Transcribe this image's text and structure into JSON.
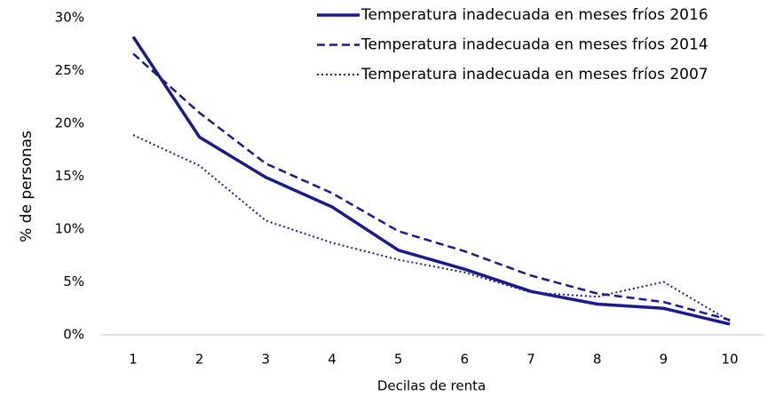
{
  "chart_data": {
    "type": "line",
    "xlabel": "Decilas de renta",
    "ylabel": "% de personas",
    "categories": [
      "1",
      "2",
      "3",
      "4",
      "5",
      "6",
      "7",
      "8",
      "9",
      "10"
    ],
    "series": [
      {
        "name": "Temperatura inadecuada en meses fríos 2016",
        "color": "#1a1a8c",
        "style": "solid",
        "values": [
          28.2,
          18.7,
          14.9,
          12.1,
          8.0,
          6.2,
          4.1,
          2.9,
          2.5,
          1.0
        ]
      },
      {
        "name": "Temperatura inadecuada en meses fríos 2014",
        "color": "#1a1a8c",
        "style": "dashed",
        "values": [
          26.6,
          21.0,
          16.2,
          13.4,
          9.8,
          7.9,
          5.6,
          3.9,
          3.1,
          1.4
        ]
      },
      {
        "name": "Temperatura inadecuada en meses fríos 2007",
        "color": "#1a1a8c",
        "style": "dotted",
        "values": [
          18.9,
          16.0,
          10.8,
          8.7,
          7.1,
          5.9,
          4.0,
          3.6,
          5.0,
          1.3
        ]
      }
    ],
    "ylim": [
      0,
      30
    ],
    "yticks": [
      {
        "value": 0,
        "label": "0%"
      },
      {
        "value": 5,
        "label": "5%"
      },
      {
        "value": 10,
        "label": "10%"
      },
      {
        "value": 15,
        "label": "15%"
      },
      {
        "value": 20,
        "label": "20%"
      },
      {
        "value": 25,
        "label": "25%"
      },
      {
        "value": 30,
        "label": "30%"
      }
    ],
    "grid": false,
    "legend": "top-right"
  }
}
